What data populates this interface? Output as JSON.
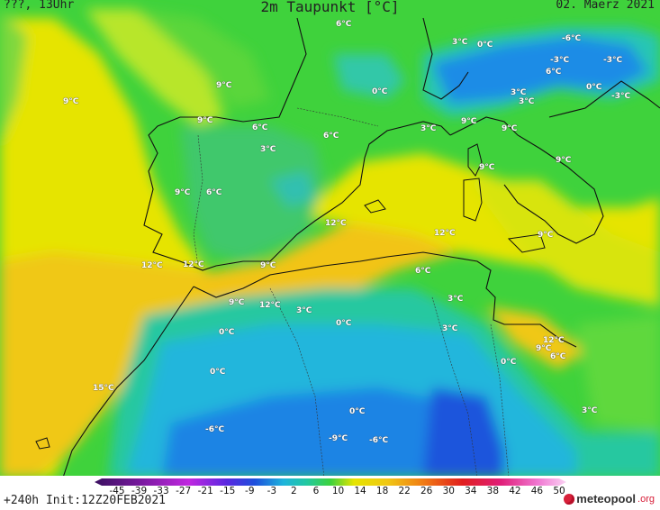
{
  "header": {
    "left": "???, 13Uhr",
    "title": "2m Taupunkt [°C]",
    "right": "02. Maerz 2021"
  },
  "footer": {
    "run_info": "+240h  Init:12Z20FEB2021",
    "logo_name": "meteopool",
    "logo_tld": ".org"
  },
  "colors": {
    "yellow": "#e8e800",
    "yellow_green": "#b6e62c",
    "green": "#3cd23c",
    "light_green": "#5adc3c",
    "orange": "#f0c814",
    "teal": "#22c8a0",
    "cyan": "#1eb4dc",
    "blue": "#1e78e6",
    "deep_blue": "#1e50dc"
  },
  "legend": {
    "ticks": [
      "-45",
      "-39",
      "-33",
      "-27",
      "-21",
      "-15",
      "-9",
      "-3",
      "2",
      "6",
      "10",
      "14",
      "18",
      "22",
      "26",
      "30",
      "34",
      "38",
      "42",
      "46",
      "50"
    ]
  },
  "labels": [
    {
      "text": "6°C"
    },
    {
      "text": "3°C"
    },
    {
      "text": "0°C"
    },
    {
      "text": "-6°C"
    },
    {
      "text": "-3°C"
    },
    {
      "text": "-3°C"
    },
    {
      "text": "9°C"
    },
    {
      "text": "9°C"
    },
    {
      "text": "0°C"
    },
    {
      "text": "6°C"
    },
    {
      "text": "3°C"
    },
    {
      "text": "0°C"
    },
    {
      "text": "-3°C"
    },
    {
      "text": "9°C"
    },
    {
      "text": "6°C"
    },
    {
      "text": "3°C"
    },
    {
      "text": "9°C"
    },
    {
      "text": "3°C"
    },
    {
      "text": "6°C"
    },
    {
      "text": "9°C"
    },
    {
      "text": "9°C"
    },
    {
      "text": "6°C"
    },
    {
      "text": "3°C"
    },
    {
      "text": "9°C"
    },
    {
      "text": "12°C"
    },
    {
      "text": "12°C"
    },
    {
      "text": "12°C"
    },
    {
      "text": "12°C"
    },
    {
      "text": "9°C"
    },
    {
      "text": "9°C"
    },
    {
      "text": "9°C"
    },
    {
      "text": "6°C"
    },
    {
      "text": "3°C"
    },
    {
      "text": "9°C"
    },
    {
      "text": "12°C"
    },
    {
      "text": "3°C"
    },
    {
      "text": "0°C"
    },
    {
      "text": "3°C"
    },
    {
      "text": "0°C"
    },
    {
      "text": "12°C"
    },
    {
      "text": "9°C"
    },
    {
      "text": "6°C"
    },
    {
      "text": "0°C"
    },
    {
      "text": "0°C"
    },
    {
      "text": "15°C"
    },
    {
      "text": "3°C"
    },
    {
      "text": "0°C"
    },
    {
      "text": "-6°C"
    },
    {
      "text": "-9°C"
    },
    {
      "text": "-6°C"
    }
  ]
}
